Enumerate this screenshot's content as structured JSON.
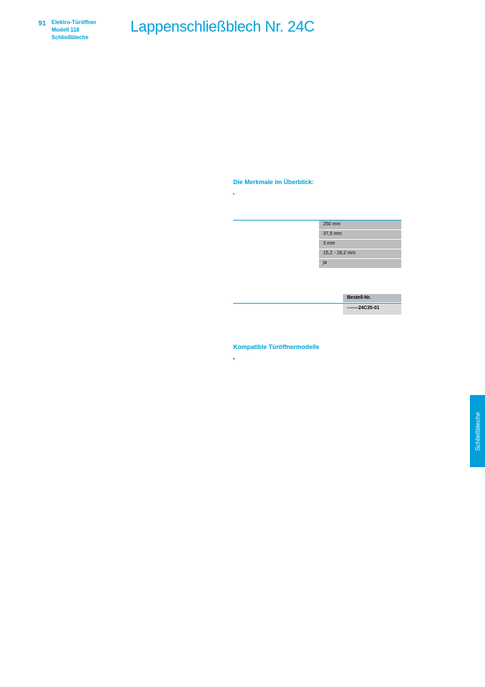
{
  "page_number": "91",
  "breadcrumb": {
    "line1": "Elektro-Türöffner",
    "line2": "Modell 118",
    "line3": "Schließbleche"
  },
  "title": "Lappenschließblech Nr. 24C",
  "features": {
    "heading": "Die Merkmale im Überblick:",
    "items": [
      "",
      ""
    ]
  },
  "specs": {
    "rows": [
      {
        "label": "",
        "value": "250 mm"
      },
      {
        "label": "",
        "value": "37,5 mm"
      },
      {
        "label": "",
        "value": "3 mm"
      },
      {
        "label": "",
        "value": "15,2 - 18,2 mm"
      },
      {
        "label": "",
        "value": "ja"
      }
    ],
    "border_color": "#009fda",
    "cell_bg": "#bcbdbf"
  },
  "order": {
    "head_left": "",
    "head_right": "Bestell-Nr.",
    "body_left": "",
    "body_right": "-------24C35-01",
    "head_bg": "#bcbdbf",
    "body_bg": "#d9dadb"
  },
  "compat": {
    "heading": "Kompatible Türöffnermodelle",
    "items": [
      "",
      "",
      "",
      "",
      "",
      ""
    ]
  },
  "side_tab": "Schließbleche",
  "colors": {
    "accent": "#009fda",
    "background": "#ffffff"
  }
}
